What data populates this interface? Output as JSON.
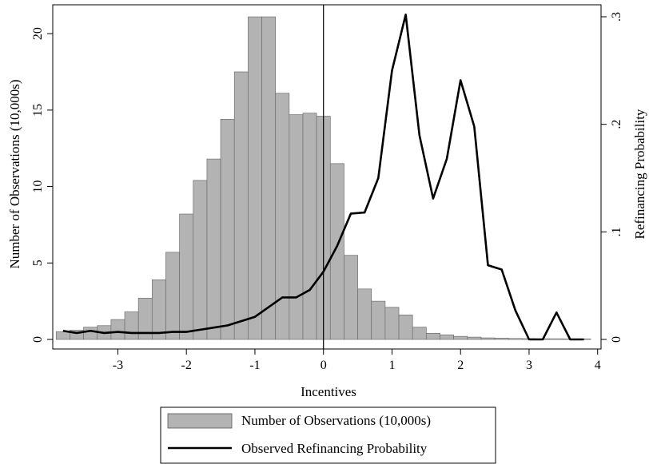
{
  "chart_data": {
    "type": "bar",
    "xlabel": "Incentives",
    "ylabel_left": "Number of Observations (10,000s)",
    "ylabel_right": "Refinancing Probability",
    "xlim": [
      -3.95,
      4.05
    ],
    "ylim_left": [
      0,
      22
    ],
    "ylim_right": [
      0,
      0.32
    ],
    "x_ticks": [
      -3,
      -2,
      -1,
      0,
      1,
      2,
      3,
      4
    ],
    "x_tick_labels": [
      "-3",
      "-2",
      "-1",
      "0",
      "1",
      "2",
      "3",
      "4"
    ],
    "y_left_ticks": [
      0,
      5,
      10,
      15,
      20
    ],
    "y_left_tick_labels": [
      "0",
      "5",
      "10",
      "15",
      "20"
    ],
    "y_right_ticks": [
      0,
      0.1,
      0.2,
      0.3
    ],
    "y_right_tick_labels": [
      "0",
      ".1",
      ".2",
      ".3"
    ],
    "reference_line_x": 0,
    "bin_width": 0.2,
    "grid": false,
    "legend_position": "bottom",
    "series": [
      {
        "name": "Number of Observations (10,000s)",
        "type": "bar",
        "axis": "left",
        "color": "#b3b3b3",
        "x": [
          -3.8,
          -3.6,
          -3.4,
          -3.2,
          -3.0,
          -2.8,
          -2.6,
          -2.4,
          -2.2,
          -2.0,
          -1.8,
          -1.6,
          -1.4,
          -1.2,
          -1.0,
          -0.8,
          -0.6,
          -0.4,
          -0.2,
          0.0,
          0.2,
          0.4,
          0.6,
          0.8,
          1.0,
          1.2,
          1.4,
          1.6,
          1.8,
          2.0,
          2.2,
          2.4,
          2.6,
          2.8,
          3.0,
          3.2,
          3.4,
          3.6,
          3.8
        ],
        "values": [
          0.5,
          0.6,
          0.8,
          0.9,
          1.3,
          1.8,
          2.7,
          3.9,
          5.7,
          8.2,
          10.4,
          11.8,
          14.4,
          17.5,
          21.1,
          21.1,
          16.1,
          14.7,
          14.8,
          14.6,
          11.5,
          5.5,
          3.3,
          2.5,
          2.1,
          1.6,
          0.8,
          0.4,
          0.3,
          0.2,
          0.15,
          0.1,
          0.08,
          0.06,
          0.05,
          0.04,
          0.04,
          0.03,
          0.03
        ]
      },
      {
        "name": "Observed Refinancing Probability",
        "type": "line",
        "axis": "right",
        "color": "#000000",
        "x": [
          -3.8,
          -3.6,
          -3.4,
          -3.2,
          -3.0,
          -2.8,
          -2.6,
          -2.4,
          -2.2,
          -2.0,
          -1.8,
          -1.6,
          -1.4,
          -1.2,
          -1.0,
          -0.8,
          -0.6,
          -0.4,
          -0.2,
          0.0,
          0.2,
          0.4,
          0.6,
          0.8,
          1.0,
          1.2,
          1.4,
          1.6,
          1.8,
          2.0,
          2.2,
          2.4,
          2.6,
          2.8,
          3.0,
          3.2,
          3.4,
          3.6,
          3.8
        ],
        "values": [
          0.008,
          0.006,
          0.008,
          0.006,
          0.007,
          0.006,
          0.006,
          0.006,
          0.007,
          0.007,
          0.009,
          0.011,
          0.013,
          0.017,
          0.021,
          0.03,
          0.039,
          0.039,
          0.046,
          0.063,
          0.087,
          0.117,
          0.118,
          0.15,
          0.25,
          0.302,
          0.19,
          0.131,
          0.168,
          0.241,
          0.198,
          0.069,
          0.065,
          0.027,
          0.0,
          0.0,
          0.025,
          0.0,
          0.0
        ]
      }
    ]
  }
}
